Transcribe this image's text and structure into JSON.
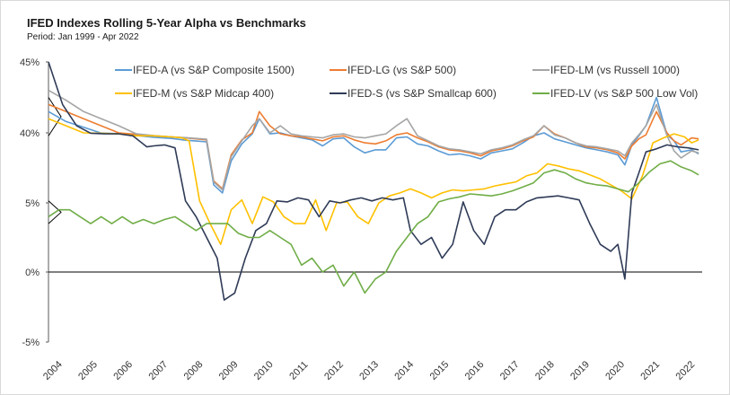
{
  "chart_data": {
    "type": "line",
    "title": "IFED Indexes Rolling 5-Year Alpha vs Benchmarks",
    "subtitle": "Period: Jan 1999 - Apr 2022",
    "xlabel": "",
    "ylabel": "",
    "ylim": [
      -5,
      45
    ],
    "xlim": [
      2004.0,
      2022.6
    ],
    "y_ticks": [
      "45%",
      "40%",
      "5%",
      "0%",
      "-5%"
    ],
    "y_tick_values": [
      45,
      40,
      5,
      0,
      -5
    ],
    "x_ticks": [
      "2004",
      "2005",
      "2006",
      "2007",
      "2008",
      "2009",
      "2010",
      "2011",
      "2012",
      "2013",
      "2014",
      "2015",
      "2016",
      "2017",
      "2018",
      "2019",
      "2020",
      "2021",
      "2022"
    ],
    "x_tick_values": [
      2004,
      2005,
      2006,
      2007,
      2008,
      2009,
      2010,
      2011,
      2012,
      2013,
      2014,
      2015,
      2016,
      2017,
      2018,
      2019,
      2020,
      2021,
      2022
    ],
    "grid": false,
    "legend_position": "top",
    "series": [
      {
        "name": "IFED-A (vs S&P Composite 1500)",
        "color": "#5b9bd5",
        "x": [
          2004.0,
          2004.5,
          2005.0,
          2005.5,
          2006.0,
          2006.5,
          2007.0,
          2007.5,
          2007.9,
          2008.2,
          2008.5,
          2008.7,
          2008.95,
          2009.2,
          2009.5,
          2009.8,
          2010.0,
          2010.3,
          2010.6,
          2010.9,
          2011.2,
          2011.5,
          2011.8,
          2012.1,
          2012.4,
          2012.7,
          2013.0,
          2013.3,
          2013.6,
          2013.9,
          2014.2,
          2014.5,
          2014.8,
          2015.1,
          2015.4,
          2015.7,
          2016.0,
          2016.3,
          2016.6,
          2016.9,
          2017.2,
          2017.5,
          2017.8,
          2018.1,
          2018.4,
          2018.7,
          2019.0,
          2019.3,
          2019.6,
          2019.9,
          2020.2,
          2020.4,
          2020.6,
          2020.8,
          2021.0,
          2021.3,
          2021.6,
          2021.8,
          2022.0,
          2022.3,
          2022.5
        ],
        "y": [
          41.5,
          40.8,
          40.4,
          39.9,
          39.6,
          38.7,
          37.8,
          37.2,
          36.3,
          35.9,
          35.5,
          14.0,
          10.0,
          26.0,
          34.5,
          39.5,
          41.0,
          39.5,
          40.0,
          38.5,
          37.5,
          36.5,
          33.5,
          37.0,
          37.5,
          33.0,
          30.0,
          31.5,
          31.5,
          37.5,
          38.0,
          34.5,
          33.5,
          31.0,
          29.0,
          29.5,
          28.5,
          27.0,
          30.0,
          31.0,
          32.0,
          35.0,
          38.5,
          40.0,
          37.0,
          35.5,
          34.0,
          32.5,
          31.5,
          30.5,
          29.0,
          24.0,
          34.0,
          38.5,
          40.5,
          42.5,
          39.0,
          36.0,
          30.5,
          31.5,
          29.5
        ]
      },
      {
        "name": "IFED-LG (vs S&P 500)",
        "color": "#ed7d31",
        "x": [
          2004.0,
          2004.5,
          2005.0,
          2005.5,
          2006.0,
          2006.5,
          2007.0,
          2007.5,
          2007.9,
          2008.2,
          2008.5,
          2008.7,
          2008.95,
          2009.2,
          2009.5,
          2009.8,
          2010.0,
          2010.3,
          2010.6,
          2010.9,
          2011.2,
          2011.5,
          2011.8,
          2012.1,
          2012.4,
          2012.7,
          2013.0,
          2013.3,
          2013.6,
          2013.9,
          2014.2,
          2014.5,
          2014.8,
          2015.1,
          2015.4,
          2015.7,
          2016.0,
          2016.3,
          2016.6,
          2016.9,
          2017.2,
          2017.5,
          2017.8,
          2018.1,
          2018.4,
          2018.7,
          2019.0,
          2019.3,
          2019.6,
          2019.9,
          2020.2,
          2020.4,
          2020.6,
          2020.8,
          2021.0,
          2021.3,
          2021.6,
          2021.8,
          2022.0,
          2022.3,
          2022.5
        ],
        "y": [
          42.0,
          41.5,
          41.0,
          40.5,
          40.0,
          39.3,
          38.5,
          38.0,
          37.5,
          37.0,
          36.5,
          16.0,
          12.0,
          29.0,
          36.5,
          40.0,
          41.5,
          40.5,
          39.5,
          38.5,
          38.0,
          37.0,
          36.0,
          38.0,
          38.5,
          36.5,
          35.0,
          34.5,
          36.0,
          39.0,
          40.0,
          37.5,
          35.5,
          33.0,
          31.5,
          31.0,
          30.0,
          28.5,
          31.0,
          32.0,
          33.5,
          36.0,
          38.0,
          40.5,
          39.5,
          37.5,
          35.0,
          33.0,
          32.5,
          31.5,
          30.0,
          27.0,
          33.5,
          37.0,
          39.0,
          41.5,
          40.0,
          36.0,
          34.0,
          37.5,
          37.0
        ]
      },
      {
        "name": "IFED-LM (vs Russell 1000)",
        "color": "#a5a5a5",
        "x": [
          2004.0,
          2004.5,
          2005.0,
          2005.5,
          2006.0,
          2006.5,
          2007.0,
          2007.5,
          2007.9,
          2008.2,
          2008.5,
          2008.7,
          2008.95,
          2009.2,
          2009.5,
          2009.8,
          2010.0,
          2010.3,
          2010.6,
          2010.9,
          2011.2,
          2011.5,
          2011.8,
          2012.1,
          2012.4,
          2012.7,
          2013.0,
          2013.3,
          2013.6,
          2013.9,
          2014.2,
          2014.5,
          2014.8,
          2015.1,
          2015.4,
          2015.7,
          2016.0,
          2016.3,
          2016.6,
          2016.9,
          2017.2,
          2017.5,
          2017.8,
          2018.1,
          2018.4,
          2018.7,
          2019.0,
          2019.3,
          2019.6,
          2019.9,
          2020.2,
          2020.4,
          2020.6,
          2020.8,
          2021.0,
          2021.3,
          2021.6,
          2021.8,
          2022.0,
          2022.3,
          2022.5
        ],
        "y": [
          43.0,
          42.3,
          41.5,
          41.0,
          40.5,
          39.5,
          38.6,
          38.0,
          37.6,
          37.2,
          36.8,
          15.5,
          11.5,
          28.0,
          36.0,
          40.5,
          41.0,
          40.0,
          40.5,
          39.5,
          38.5,
          38.0,
          37.5,
          39.0,
          39.5,
          38.0,
          37.5,
          38.5,
          39.5,
          40.5,
          41.0,
          38.5,
          36.0,
          33.5,
          32.0,
          31.5,
          30.5,
          29.5,
          31.5,
          32.5,
          34.0,
          36.5,
          38.5,
          40.5,
          39.0,
          37.5,
          35.0,
          33.5,
          33.0,
          32.0,
          31.0,
          28.5,
          35.0,
          39.0,
          40.5,
          42.0,
          38.5,
          31.0,
          27.5,
          31.0,
          30.0
        ]
      },
      {
        "name": "IFED-M (vs S&P Midcap 400)",
        "color": "#ffc000",
        "x": [
          2004.0,
          2004.5,
          2005.0,
          2005.5,
          2006.0,
          2006.5,
          2007.0,
          2007.5,
          2007.8,
          2008.0,
          2008.3,
          2008.6,
          2008.9,
          2009.2,
          2009.5,
          2009.8,
          2010.1,
          2010.4,
          2010.7,
          2011.0,
          2011.3,
          2011.6,
          2011.9,
          2012.2,
          2012.5,
          2012.8,
          2013.1,
          2013.4,
          2013.7,
          2014.0,
          2014.3,
          2014.6,
          2014.9,
          2015.2,
          2015.5,
          2015.8,
          2016.1,
          2016.4,
          2016.7,
          2017.0,
          2017.3,
          2017.6,
          2017.9,
          2018.2,
          2018.5,
          2018.8,
          2019.1,
          2019.4,
          2019.7,
          2020.0,
          2020.3,
          2020.6,
          2020.9,
          2021.2,
          2021.5,
          2021.8,
          2022.1,
          2022.3,
          2022.5
        ],
        "y": [
          41.0,
          40.5,
          40.0,
          39.8,
          39.5,
          38.5,
          38.5,
          38.0,
          37.5,
          36.0,
          6.0,
          3.5,
          2.0,
          4.5,
          6.5,
          3.5,
          8.0,
          5.5,
          4.0,
          3.5,
          3.5,
          6.5,
          3.0,
          5.0,
          5.5,
          4.0,
          3.5,
          5.0,
          8.5,
          10.0,
          12.0,
          10.0,
          7.5,
          10.0,
          11.5,
          11.0,
          11.5,
          12.0,
          13.5,
          14.5,
          15.5,
          18.5,
          20.0,
          24.5,
          23.5,
          22.0,
          21.0,
          19.0,
          17.0,
          14.0,
          11.0,
          7.0,
          18.5,
          35.0,
          37.5,
          39.5,
          38.0,
          35.0,
          36.5
        ]
      },
      {
        "name": "IFED-S (vs S&P Smallcap 600)",
        "color": "#2f3b57",
        "x": [
          2004.0,
          2004.4,
          2004.8,
          2005.2,
          2005.6,
          2006.0,
          2006.4,
          2006.8,
          2007.0,
          2007.3,
          2007.6,
          2007.9,
          2008.2,
          2008.5,
          2008.8,
          2009.0,
          2009.3,
          2009.6,
          2009.9,
          2010.2,
          2010.5,
          2010.8,
          2011.1,
          2011.4,
          2011.7,
          2012.0,
          2012.3,
          2012.6,
          2012.9,
          2013.2,
          2013.5,
          2013.8,
          2014.1,
          2014.3,
          2014.6,
          2014.9,
          2015.2,
          2015.5,
          2015.8,
          2016.1,
          2016.4,
          2016.7,
          2017.0,
          2017.3,
          2017.6,
          2017.9,
          2018.2,
          2018.5,
          2018.8,
          2019.1,
          2019.4,
          2019.7,
          2020.0,
          2020.2,
          2020.4,
          2020.6,
          2020.8,
          2021.0,
          2021.3,
          2021.6,
          2021.9,
          2022.2,
          2022.5
        ],
        "y": [
          45.0,
          42.0,
          40.5,
          39.8,
          39.5,
          39.5,
          38.5,
          33.0,
          33.5,
          34.0,
          32.5,
          6.0,
          4.0,
          2.5,
          1.0,
          -2.0,
          -1.5,
          1.0,
          3.0,
          3.5,
          6.0,
          5.5,
          7.5,
          6.5,
          4.0,
          6.0,
          5.0,
          6.5,
          7.5,
          6.0,
          7.5,
          6.5,
          7.5,
          3.0,
          2.0,
          2.5,
          1.0,
          2.0,
          5.5,
          3.0,
          2.0,
          4.0,
          4.5,
          4.5,
          5.5,
          7.5,
          8.0,
          8.5,
          7.5,
          6.5,
          3.5,
          2.0,
          1.5,
          2.0,
          -0.5,
          10.0,
          20.0,
          30.5,
          32.0,
          34.0,
          33.0,
          32.5,
          31.5
        ]
      },
      {
        "name": "IFED-LV (vs S&P 500 Low Vol)",
        "color": "#70ad47",
        "x": [
          2004.0,
          2004.3,
          2004.6,
          2004.9,
          2005.2,
          2005.5,
          2005.8,
          2006.1,
          2006.4,
          2006.7,
          2007.0,
          2007.3,
          2007.6,
          2007.9,
          2008.2,
          2008.5,
          2008.8,
          2009.1,
          2009.4,
          2009.7,
          2010.0,
          2010.3,
          2010.6,
          2010.9,
          2011.2,
          2011.5,
          2011.8,
          2012.1,
          2012.4,
          2012.7,
          2013.0,
          2013.3,
          2013.6,
          2013.9,
          2014.2,
          2014.5,
          2014.8,
          2015.1,
          2015.4,
          2015.7,
          2016.0,
          2016.3,
          2016.6,
          2016.9,
          2017.2,
          2017.5,
          2017.8,
          2018.1,
          2018.4,
          2018.7,
          2019.0,
          2019.3,
          2019.6,
          2019.9,
          2020.2,
          2020.5,
          2020.8,
          2021.1,
          2021.4,
          2021.7,
          2022.0,
          2022.3,
          2022.5
        ],
        "y": [
          4.0,
          4.5,
          4.5,
          4.0,
          3.5,
          4.0,
          3.5,
          4.0,
          3.5,
          3.8,
          3.5,
          3.8,
          4.0,
          3.5,
          3.0,
          3.5,
          3.5,
          3.5,
          2.8,
          2.5,
          2.5,
          3.0,
          2.5,
          2.0,
          0.5,
          1.0,
          0.0,
          0.5,
          -1.0,
          0.0,
          -1.5,
          -0.5,
          0.0,
          1.5,
          2.5,
          3.5,
          4.0,
          5.5,
          7.0,
          8.0,
          9.5,
          9.0,
          8.5,
          9.5,
          11.0,
          13.0,
          15.0,
          20.0,
          21.5,
          20.0,
          17.0,
          15.0,
          14.0,
          13.5,
          12.0,
          10.5,
          15.0,
          20.5,
          24.5,
          26.0,
          23.0,
          21.0,
          19.0
        ]
      }
    ]
  }
}
